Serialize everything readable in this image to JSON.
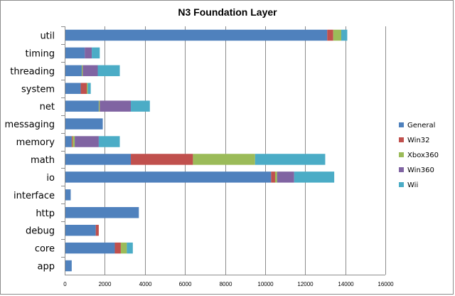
{
  "chart_data": {
    "type": "bar",
    "orientation": "horizontal",
    "stacked": true,
    "title": "N3 Foundation Layer",
    "xlabel": "",
    "ylabel": "",
    "xlim": [
      0,
      16000
    ],
    "x_ticks": [
      "0",
      "2000",
      "4000",
      "6000",
      "8000",
      "10000",
      "12000",
      "14000",
      "16000"
    ],
    "grid": "vertical",
    "legend_position": "right",
    "categories": [
      "util",
      "timing",
      "threading",
      "system",
      "net",
      "messaging",
      "memory",
      "math",
      "io",
      "interface",
      "http",
      "debug",
      "core",
      "app"
    ],
    "series": [
      {
        "name": "General",
        "color": "#4f81bd",
        "values": [
          13100,
          1000,
          850,
          800,
          1700,
          1900,
          350,
          3300,
          10300,
          300,
          3700,
          1550,
          2500,
          350
        ]
      },
      {
        "name": "Win32",
        "color": "#c0504d",
        "values": [
          300,
          0,
          0,
          300,
          0,
          0,
          50,
          3100,
          200,
          0,
          0,
          150,
          300,
          0
        ]
      },
      {
        "name": "Xbox360",
        "color": "#9bbb59",
        "values": [
          400,
          0,
          50,
          50,
          50,
          0,
          100,
          3100,
          100,
          0,
          0,
          0,
          300,
          0
        ]
      },
      {
        "name": "Win360",
        "color": "#8064a2",
        "values": [
          0,
          350,
          750,
          0,
          1550,
          0,
          1200,
          0,
          850,
          0,
          0,
          0,
          0,
          0
        ]
      },
      {
        "name": "Wii",
        "color": "#4bacc6",
        "values": [
          300,
          400,
          1100,
          150,
          950,
          0,
          1050,
          3500,
          2000,
          0,
          0,
          0,
          300,
          0
        ]
      }
    ]
  }
}
